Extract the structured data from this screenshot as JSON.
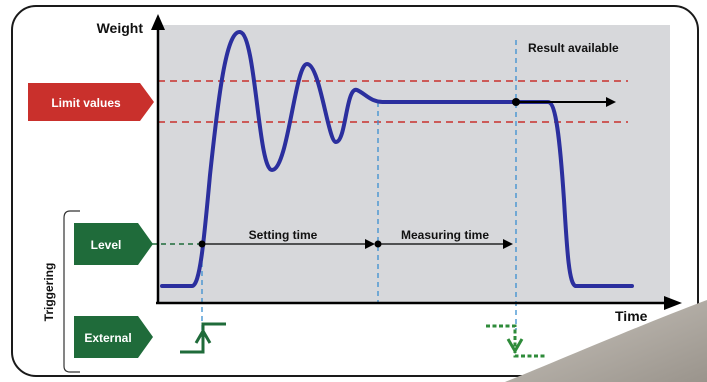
{
  "axes": {
    "y_label": "Weight",
    "x_label": "Time"
  },
  "badges": {
    "limit_values": "Limit values",
    "level": "Level",
    "external": "External"
  },
  "side_label": "Triggering",
  "annotations": {
    "result_available": "Result available",
    "setting_time": "Setting time",
    "measuring_time": "Measuring time"
  },
  "colors": {
    "curve": "#2b2f9e",
    "limit_lines": "#c9302c",
    "badge_red": "#c9302c",
    "badge_green": "#1f6b3a",
    "plot_background": "#d7d8db",
    "guide_lines": "#3a8fd0",
    "trigger_green": "#2e8b3a"
  }
}
